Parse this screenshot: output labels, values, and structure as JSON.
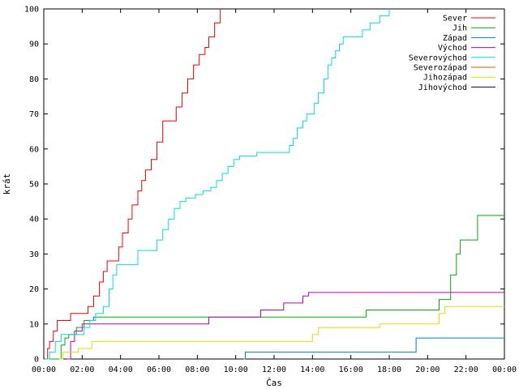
{
  "chart_data": {
    "type": "line",
    "xlabel": "Čas",
    "ylabel": "krát",
    "x_ticks": [
      "00:00",
      "02:00",
      "04:00",
      "06:00",
      "08:00",
      "10:00",
      "12:00",
      "14:00",
      "16:00",
      "18:00",
      "20:00",
      "22:00",
      "00:00"
    ],
    "y_ticks": [
      "0",
      "10",
      "20",
      "30",
      "40",
      "50",
      "60",
      "70",
      "80",
      "90",
      "100"
    ],
    "xlim": [
      0,
      24
    ],
    "ylim": [
      0,
      100
    ],
    "legend_position": "top-right",
    "step": true,
    "series": [
      {
        "name": "Sever",
        "color": "#ff0000",
        "points": [
          [
            0.1,
            0
          ],
          [
            0.2,
            3
          ],
          [
            0.3,
            5
          ],
          [
            0.5,
            8
          ],
          [
            0.7,
            11
          ],
          [
            1.2,
            11
          ],
          [
            1.4,
            13
          ],
          [
            2.1,
            13
          ],
          [
            2.3,
            15
          ],
          [
            2.6,
            18
          ],
          [
            2.9,
            22
          ],
          [
            3.1,
            25
          ],
          [
            3.3,
            28
          ],
          [
            3.7,
            28
          ],
          [
            3.9,
            32
          ],
          [
            4.1,
            36
          ],
          [
            4.4,
            40
          ],
          [
            4.6,
            44
          ],
          [
            4.9,
            48
          ],
          [
            5.1,
            51
          ],
          [
            5.3,
            54
          ],
          [
            5.6,
            57
          ],
          [
            5.9,
            62
          ],
          [
            6.2,
            68
          ],
          [
            6.7,
            68
          ],
          [
            6.9,
            72
          ],
          [
            7.2,
            76
          ],
          [
            7.5,
            80
          ],
          [
            7.8,
            84
          ],
          [
            8.1,
            87
          ],
          [
            8.4,
            89
          ],
          [
            8.6,
            92
          ],
          [
            8.9,
            96
          ],
          [
            9.2,
            100
          ]
        ]
      },
      {
        "name": "Jih",
        "color": "#00b000",
        "points": [
          [
            0,
            0
          ],
          [
            0.7,
            0
          ],
          [
            0.9,
            4
          ],
          [
            1.1,
            6
          ],
          [
            1.3,
            7
          ],
          [
            1.7,
            9
          ],
          [
            2.1,
            11
          ],
          [
            2.6,
            12
          ],
          [
            16.7,
            12
          ],
          [
            16.8,
            14
          ],
          [
            20.4,
            14
          ],
          [
            20.6,
            17
          ],
          [
            20.9,
            17
          ],
          [
            21.2,
            24
          ],
          [
            21.5,
            30
          ],
          [
            21.7,
            34
          ],
          [
            22.3,
            34
          ],
          [
            22.6,
            41
          ],
          [
            24,
            41
          ]
        ]
      },
      {
        "name": "Západ",
        "color": "#0080c0",
        "points": [
          [
            10.4,
            0
          ],
          [
            10.5,
            2
          ],
          [
            19.2,
            2
          ],
          [
            19.4,
            6
          ],
          [
            24,
            6
          ]
        ]
      },
      {
        "name": "Východ",
        "color": "#c000c0",
        "points": [
          [
            1.2,
            0
          ],
          [
            1.4,
            5
          ],
          [
            1.6,
            8
          ],
          [
            2.0,
            10
          ],
          [
            8.5,
            10
          ],
          [
            8.6,
            12
          ],
          [
            11.1,
            12
          ],
          [
            11.3,
            14
          ],
          [
            12.3,
            14
          ],
          [
            12.5,
            16
          ],
          [
            13.3,
            16
          ],
          [
            13.5,
            18
          ],
          [
            13.8,
            19
          ],
          [
            24,
            19
          ]
        ]
      },
      {
        "name": "Severovýchod",
        "color": "#00e0e0",
        "points": [
          [
            0.1,
            0
          ],
          [
            0.3,
            2
          ],
          [
            0.6,
            5
          ],
          [
            0.9,
            7
          ],
          [
            1.9,
            7
          ],
          [
            2.1,
            9
          ],
          [
            2.4,
            11
          ],
          [
            2.7,
            13
          ],
          [
            3.1,
            15
          ],
          [
            3.4,
            20
          ],
          [
            3.6,
            24
          ],
          [
            3.8,
            27
          ],
          [
            4.6,
            27
          ],
          [
            4.9,
            31
          ],
          [
            5.6,
            31
          ],
          [
            5.9,
            34
          ],
          [
            6.2,
            37
          ],
          [
            6.5,
            40
          ],
          [
            6.8,
            43
          ],
          [
            7.1,
            45
          ],
          [
            7.4,
            46
          ],
          [
            7.9,
            47
          ],
          [
            8.3,
            48
          ],
          [
            8.7,
            49
          ],
          [
            9.0,
            51
          ],
          [
            9.3,
            53
          ],
          [
            9.6,
            55
          ],
          [
            9.9,
            57
          ],
          [
            10.2,
            58
          ],
          [
            10.8,
            58
          ],
          [
            11.1,
            59
          ],
          [
            12.6,
            59
          ],
          [
            12.8,
            61
          ],
          [
            13.0,
            63
          ],
          [
            13.2,
            66
          ],
          [
            13.5,
            68
          ],
          [
            13.7,
            70
          ],
          [
            14.1,
            73
          ],
          [
            14.3,
            76
          ],
          [
            14.6,
            80
          ],
          [
            14.8,
            84
          ],
          [
            15.0,
            86
          ],
          [
            15.2,
            88
          ],
          [
            15.4,
            90
          ],
          [
            15.6,
            92
          ],
          [
            16.3,
            92
          ],
          [
            16.6,
            94
          ],
          [
            17.0,
            96
          ],
          [
            17.5,
            98
          ],
          [
            18.0,
            100
          ]
        ]
      },
      {
        "name": "Severozápad",
        "color": "#c06000",
        "points": []
      },
      {
        "name": "Jihozápad",
        "color": "#e0e000",
        "points": [
          [
            0.8,
            0
          ],
          [
            1.0,
            2
          ],
          [
            1.6,
            2
          ],
          [
            1.8,
            3
          ],
          [
            2.3,
            3
          ],
          [
            2.5,
            5
          ],
          [
            13.8,
            5
          ],
          [
            14.0,
            7
          ],
          [
            14.3,
            9
          ],
          [
            17.3,
            9
          ],
          [
            17.5,
            10
          ],
          [
            20.4,
            10
          ],
          [
            20.6,
            13
          ],
          [
            20.9,
            15
          ],
          [
            24,
            15
          ]
        ]
      },
      {
        "name": "Jihovýchod",
        "color": "#000080",
        "points": []
      }
    ]
  }
}
